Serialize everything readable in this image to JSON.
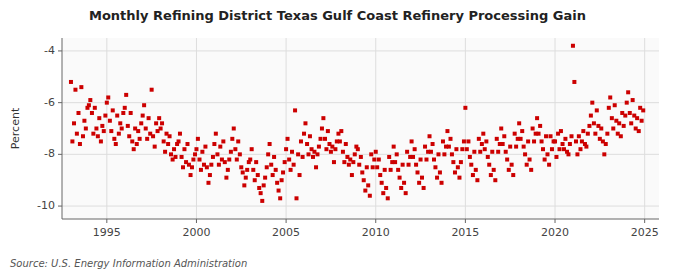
{
  "chart_data": {
    "type": "scatter",
    "title": "Monthly Refining District Texas Gulf Coast Refinery Processing Gain",
    "ylabel": "Percent",
    "source": "Source: U.S. Energy Information Administration",
    "color": "#CC0000",
    "marker": "square",
    "grid": true,
    "xlim": [
      1992.5,
      2025.8
    ],
    "ylim": [
      -10.5,
      -3.5
    ],
    "xticks": [
      1995,
      2000,
      2005,
      2010,
      2015,
      2020,
      2025
    ],
    "yticks": [
      -10,
      -8,
      -6,
      -4
    ],
    "x": [
      1993.0,
      1993.08,
      1993.17,
      1993.25,
      1993.33,
      1993.42,
      1993.5,
      1993.58,
      1993.67,
      1993.75,
      1993.83,
      1993.92,
      1994.0,
      1994.08,
      1994.17,
      1994.25,
      1994.33,
      1994.42,
      1994.5,
      1994.58,
      1994.67,
      1994.75,
      1994.83,
      1994.92,
      1995.0,
      1995.08,
      1995.17,
      1995.25,
      1995.33,
      1995.42,
      1995.5,
      1995.58,
      1995.67,
      1995.75,
      1995.83,
      1995.92,
      1996.0,
      1996.08,
      1996.17,
      1996.25,
      1996.33,
      1996.42,
      1996.5,
      1996.58,
      1996.67,
      1996.75,
      1996.83,
      1996.92,
      1997.0,
      1997.08,
      1997.17,
      1997.25,
      1997.33,
      1997.42,
      1997.5,
      1997.58,
      1997.67,
      1997.75,
      1997.83,
      1997.92,
      1998.0,
      1998.08,
      1998.17,
      1998.25,
      1998.33,
      1998.42,
      1998.5,
      1998.58,
      1998.67,
      1998.75,
      1998.83,
      1998.92,
      1999.0,
      1999.08,
      1999.17,
      1999.25,
      1999.33,
      1999.42,
      1999.5,
      1999.58,
      1999.67,
      1999.75,
      1999.83,
      1999.92,
      2000.0,
      2000.08,
      2000.17,
      2000.25,
      2000.33,
      2000.42,
      2000.5,
      2000.58,
      2000.67,
      2000.75,
      2000.83,
      2000.92,
      2001.0,
      2001.08,
      2001.17,
      2001.25,
      2001.33,
      2001.42,
      2001.5,
      2001.58,
      2001.67,
      2001.75,
      2001.83,
      2001.92,
      2002.0,
      2002.08,
      2002.17,
      2002.25,
      2002.33,
      2002.42,
      2002.5,
      2002.58,
      2002.67,
      2002.75,
      2002.83,
      2002.92,
      2003.0,
      2003.08,
      2003.17,
      2003.25,
      2003.33,
      2003.42,
      2003.5,
      2003.58,
      2003.67,
      2003.75,
      2003.83,
      2003.92,
      2004.0,
      2004.08,
      2004.17,
      2004.25,
      2004.33,
      2004.42,
      2004.5,
      2004.58,
      2004.67,
      2004.75,
      2004.83,
      2004.92,
      2005.0,
      2005.08,
      2005.17,
      2005.25,
      2005.33,
      2005.42,
      2005.5,
      2005.58,
      2005.67,
      2005.75,
      2005.83,
      2005.92,
      2006.0,
      2006.08,
      2006.17,
      2006.25,
      2006.33,
      2006.42,
      2006.5,
      2006.58,
      2006.67,
      2006.75,
      2006.83,
      2006.92,
      2007.0,
      2007.08,
      2007.17,
      2007.25,
      2007.33,
      2007.42,
      2007.5,
      2007.58,
      2007.67,
      2007.75,
      2007.83,
      2007.92,
      2008.0,
      2008.08,
      2008.17,
      2008.25,
      2008.33,
      2008.42,
      2008.5,
      2008.58,
      2008.67,
      2008.75,
      2008.83,
      2008.92,
      2009.0,
      2009.08,
      2009.17,
      2009.25,
      2009.33,
      2009.42,
      2009.5,
      2009.58,
      2009.67,
      2009.75,
      2009.83,
      2009.92,
      2010.0,
      2010.08,
      2010.17,
      2010.25,
      2010.33,
      2010.42,
      2010.5,
      2010.58,
      2010.67,
      2010.75,
      2010.83,
      2010.92,
      2011.0,
      2011.08,
      2011.17,
      2011.25,
      2011.33,
      2011.42,
      2011.5,
      2011.58,
      2011.67,
      2011.75,
      2011.83,
      2011.92,
      2012.0,
      2012.08,
      2012.17,
      2012.25,
      2012.33,
      2012.42,
      2012.5,
      2012.58,
      2012.67,
      2012.75,
      2012.83,
      2012.92,
      2013.0,
      2013.08,
      2013.17,
      2013.25,
      2013.33,
      2013.42,
      2013.5,
      2013.58,
      2013.67,
      2013.75,
      2013.83,
      2013.92,
      2014.0,
      2014.08,
      2014.17,
      2014.25,
      2014.33,
      2014.42,
      2014.5,
      2014.58,
      2014.67,
      2014.75,
      2014.83,
      2014.92,
      2015.0,
      2015.08,
      2015.17,
      2015.25,
      2015.33,
      2015.42,
      2015.5,
      2015.58,
      2015.67,
      2015.75,
      2015.83,
      2015.92,
      2016.0,
      2016.08,
      2016.17,
      2016.25,
      2016.33,
      2016.42,
      2016.5,
      2016.58,
      2016.67,
      2016.75,
      2016.83,
      2016.92,
      2017.0,
      2017.08,
      2017.17,
      2017.25,
      2017.33,
      2017.42,
      2017.5,
      2017.58,
      2017.67,
      2017.75,
      2017.83,
      2017.92,
      2018.0,
      2018.08,
      2018.17,
      2018.25,
      2018.33,
      2018.42,
      2018.5,
      2018.58,
      2018.67,
      2018.75,
      2018.83,
      2018.92,
      2019.0,
      2019.08,
      2019.17,
      2019.25,
      2019.33,
      2019.42,
      2019.5,
      2019.58,
      2019.67,
      2019.75,
      2019.83,
      2019.92,
      2020.0,
      2020.08,
      2020.17,
      2020.25,
      2020.33,
      2020.42,
      2020.5,
      2020.58,
      2020.67,
      2020.75,
      2020.83,
      2020.92,
      2021.0,
      2021.08,
      2021.17,
      2021.25,
      2021.33,
      2021.42,
      2021.5,
      2021.58,
      2021.67,
      2021.75,
      2021.83,
      2021.92,
      2022.0,
      2022.08,
      2022.17,
      2022.25,
      2022.33,
      2022.42,
      2022.5,
      2022.58,
      2022.67,
      2022.75,
      2022.83,
      2022.92,
      2023.0,
      2023.08,
      2023.17,
      2023.25,
      2023.33,
      2023.42,
      2023.5,
      2023.58,
      2023.67,
      2023.75,
      2023.83,
      2023.92,
      2024.0,
      2024.08,
      2024.17,
      2024.25,
      2024.33,
      2024.42,
      2024.5,
      2024.58,
      2024.67,
      2024.75,
      2024.83,
      2024.92
    ],
    "values": [
      -5.2,
      -7.5,
      -6.8,
      -5.5,
      -7.2,
      -6.4,
      -7.6,
      -5.4,
      -7.3,
      -6.7,
      -7.0,
      -6.2,
      -6.1,
      -5.9,
      -6.4,
      -7.2,
      -6.2,
      -7.0,
      -7.3,
      -6.6,
      -7.5,
      -6.9,
      -7.1,
      -6.5,
      -6.0,
      -5.8,
      -6.7,
      -7.1,
      -6.3,
      -7.4,
      -7.6,
      -6.5,
      -7.2,
      -6.8,
      -7.0,
      -6.4,
      -6.2,
      -5.7,
      -6.9,
      -7.3,
      -6.4,
      -7.5,
      -7.8,
      -7.0,
      -7.6,
      -7.1,
      -7.4,
      -6.8,
      -6.5,
      -6.1,
      -7.0,
      -7.4,
      -6.6,
      -7.2,
      -5.5,
      -7.3,
      -7.7,
      -6.8,
      -7.1,
      -6.6,
      -7.0,
      -6.8,
      -7.5,
      -7.9,
      -7.2,
      -7.6,
      -7.3,
      -8.0,
      -8.2,
      -7.8,
      -8.1,
      -7.6,
      -7.5,
      -7.2,
      -8.1,
      -8.5,
      -7.8,
      -8.3,
      -7.6,
      -8.4,
      -8.8,
      -8.5,
      -8.2,
      -8.0,
      -7.8,
      -7.4,
      -8.2,
      -8.6,
      -7.9,
      -8.4,
      -7.7,
      -8.5,
      -9.1,
      -8.8,
      -8.4,
      -8.1,
      -7.6,
      -7.2,
      -8.0,
      -8.4,
      -7.7,
      -8.2,
      -7.5,
      -8.3,
      -8.9,
      -8.6,
      -8.2,
      -7.9,
      -7.4,
      -7.0,
      -7.8,
      -8.2,
      -7.5,
      -8.0,
      -8.5,
      -8.7,
      -9.2,
      -8.9,
      -8.6,
      -8.3,
      -8.2,
      -7.8,
      -8.6,
      -9.0,
      -8.3,
      -8.8,
      -9.3,
      -9.5,
      -9.8,
      -9.2,
      -8.9,
      -8.5,
      -8.0,
      -7.6,
      -8.4,
      -8.8,
      -8.1,
      -8.6,
      -9.1,
      -9.4,
      -9.7,
      -9.0,
      -8.7,
      -8.3,
      -7.8,
      -7.4,
      -8.2,
      -8.6,
      -7.9,
      -8.4,
      -6.3,
      -9.7,
      -8.0,
      -8.8,
      -7.5,
      -8.1,
      -7.2,
      -6.8,
      -7.6,
      -8.0,
      -7.3,
      -7.8,
      -8.1,
      -7.9,
      -8.5,
      -8.0,
      -7.7,
      -7.4,
      -7.0,
      -6.6,
      -7.4,
      -7.8,
      -7.1,
      -7.6,
      -7.9,
      -7.7,
      -8.3,
      -7.8,
      -7.5,
      -7.2,
      -7.5,
      -7.1,
      -7.9,
      -8.3,
      -7.6,
      -8.1,
      -8.4,
      -8.2,
      -8.8,
      -8.3,
      -8.0,
      -7.7,
      -7.8,
      -8.4,
      -8.1,
      -8.7,
      -9.0,
      -9.4,
      -8.5,
      -9.2,
      -9.6,
      -8.0,
      -8.5,
      -8.2,
      -7.9,
      -8.5,
      -8.2,
      -8.8,
      -9.1,
      -9.5,
      -8.6,
      -9.3,
      -9.7,
      -8.1,
      -8.6,
      -8.3,
      -7.7,
      -8.3,
      -8.0,
      -8.6,
      -8.9,
      -9.3,
      -8.4,
      -9.1,
      -9.5,
      -7.9,
      -8.4,
      -8.1,
      -7.5,
      -8.1,
      -7.8,
      -8.4,
      -8.7,
      -9.1,
      -8.2,
      -8.9,
      -9.3,
      -7.7,
      -8.2,
      -7.9,
      -7.3,
      -7.9,
      -7.6,
      -8.2,
      -8.5,
      -8.9,
      -8.0,
      -8.7,
      -9.1,
      -7.5,
      -8.0,
      -7.7,
      -7.1,
      -7.7,
      -7.4,
      -8.0,
      -8.3,
      -8.7,
      -7.8,
      -8.5,
      -8.9,
      -8.3,
      -7.8,
      -7.5,
      -6.2,
      -7.8,
      -7.5,
      -8.1,
      -8.4,
      -8.8,
      -7.9,
      -8.6,
      -9.0,
      -7.4,
      -7.9,
      -7.6,
      -7.2,
      -7.8,
      -7.5,
      -8.1,
      -8.4,
      -8.8,
      -7.9,
      -8.6,
      -9.0,
      -7.4,
      -7.9,
      -7.6,
      -7.0,
      -7.6,
      -7.3,
      -7.9,
      -8.2,
      -8.6,
      -7.7,
      -8.4,
      -8.8,
      -7.2,
      -7.7,
      -7.4,
      -6.8,
      -7.4,
      -7.1,
      -7.7,
      -8.0,
      -8.4,
      -7.5,
      -8.2,
      -8.6,
      -7.0,
      -7.5,
      -7.2,
      -6.6,
      -7.2,
      -6.9,
      -7.5,
      -7.8,
      -8.2,
      -7.3,
      -8.0,
      -8.4,
      -7.3,
      -7.8,
      -7.5,
      -7.5,
      -8.1,
      -7.2,
      -7.8,
      -7.1,
      -7.6,
      -7.8,
      -7.4,
      -7.9,
      -8.0,
      -7.6,
      -7.3,
      -3.8,
      -5.2,
      -7.5,
      -8.0,
      -7.3,
      -7.8,
      -7.5,
      -7.1,
      -7.6,
      -7.7,
      -7.2,
      -6.9,
      -6.5,
      -6.0,
      -6.8,
      -7.2,
      -6.3,
      -6.9,
      -7.4,
      -7.0,
      -7.5,
      -8.0,
      -7.6,
      -7.2,
      -6.2,
      -5.8,
      -6.6,
      -7.0,
      -6.1,
      -6.7,
      -7.2,
      -6.8,
      -7.3,
      -6.4,
      -6.9,
      -6.5,
      -6.0,
      -5.6,
      -6.4,
      -6.8,
      -5.9,
      -6.5,
      -7.0,
      -6.6,
      -7.1,
      -6.2,
      -6.7,
      -6.3
    ]
  }
}
